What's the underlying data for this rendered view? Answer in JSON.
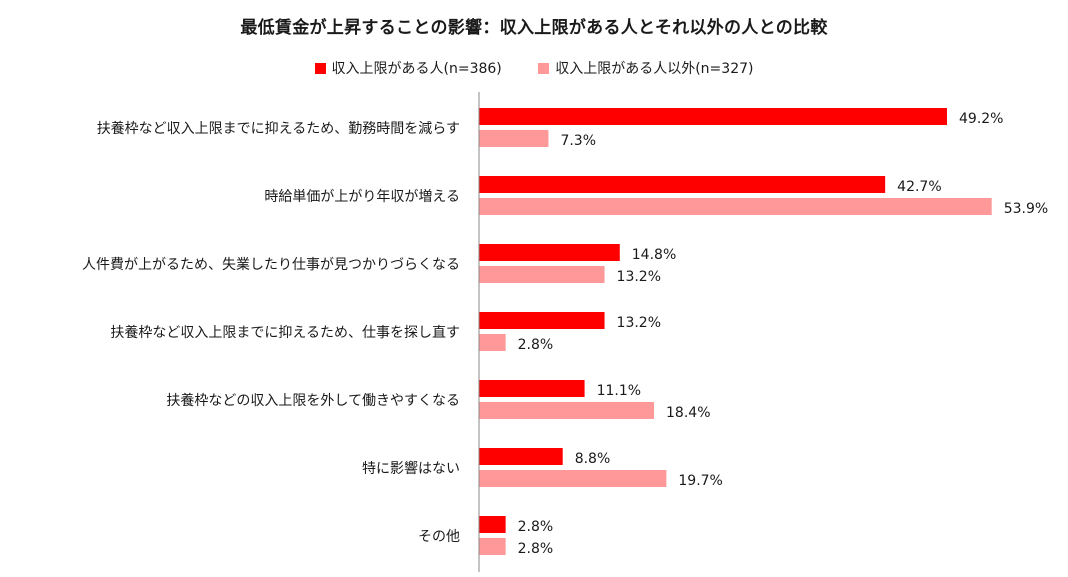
{
  "chart_data": {
    "type": "bar",
    "orientation": "horizontal",
    "title": "最低賃金が上昇することの影響：収入上限がある人とそれ以外の人との比較",
    "categories": [
      "扶養枠など収入上限までに抑えるため、勤務時間を減らす",
      "時給単価が上がり年収が増える",
      "人件費が上がるため、失業したり仕事が見つかりづらくなる",
      "扶養枠など収入上限までに抑えるため、仕事を探し直す",
      "扶養枠などの収入上限を外して働きやすくなる",
      "特に影響はない",
      "その他"
    ],
    "series": [
      {
        "name": "収入上限がある人(n=386)",
        "color": "#ff0000",
        "values": [
          49.2,
          42.7,
          14.8,
          13.2,
          11.1,
          8.8,
          2.8
        ]
      },
      {
        "name": "収入上限がある人以外(n=327)",
        "color": "#ff9999",
        "values": [
          7.3,
          53.9,
          13.2,
          2.8,
          18.4,
          19.7,
          2.8
        ]
      }
    ],
    "value_suffix": "%",
    "xlim": [
      0,
      60
    ],
    "legend_position": "top",
    "grid": false
  }
}
